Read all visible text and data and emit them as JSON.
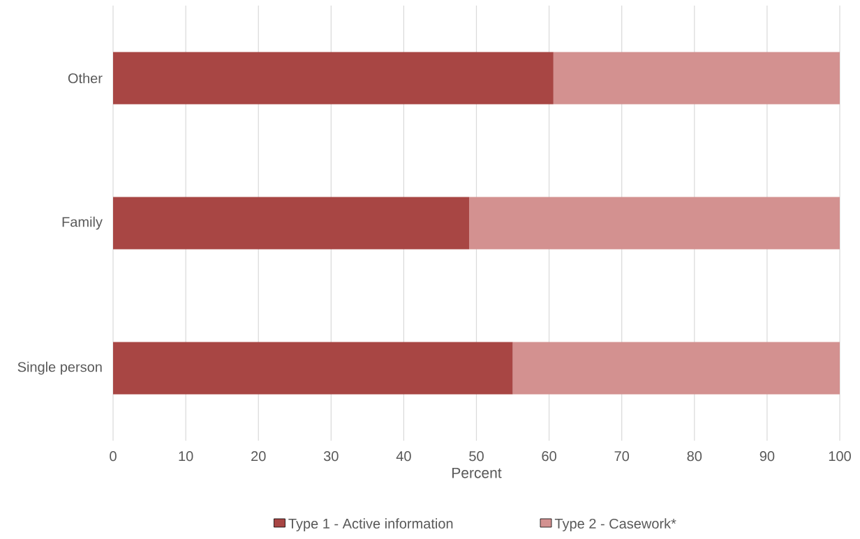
{
  "chart_data": {
    "type": "bar",
    "orientation": "horizontal",
    "stacked": true,
    "categories": [
      "Other",
      "Family",
      "Single person"
    ],
    "series": [
      {
        "name": "Type 1 - Active information",
        "color": "#a84644",
        "values": [
          60.6,
          49.0,
          55.0
        ]
      },
      {
        "name": "Type 2 - Casework*",
        "color": "#d39190",
        "values": [
          39.4,
          51.0,
          45.0
        ]
      }
    ],
    "xlabel": "Percent",
    "xlim": [
      0,
      100
    ],
    "xticks": [
      0,
      10,
      20,
      30,
      40,
      50,
      60,
      70,
      80,
      90,
      100
    ],
    "grid": "x",
    "legend": "bottom"
  }
}
